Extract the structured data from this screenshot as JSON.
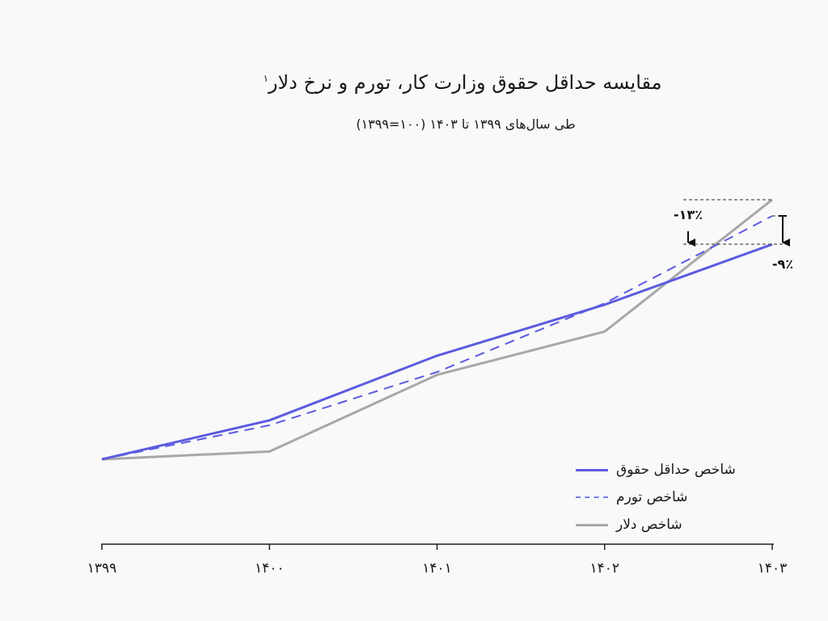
{
  "title": "مقایسه حداقل حقوق وزارت کار، تورم و نرخ دلار",
  "title_superscript": "۱",
  "subtitle": "طی سال‌های ۱۳۹۹ تا ۱۴۰۳ (۱۰۰=۱۳۹۹)",
  "legend": [
    {
      "label": "شاخص حداقل حقوق",
      "color": "#5b5be0",
      "style": "solid"
    },
    {
      "label": "شاخص تورم",
      "color": "#5b5be0",
      "style": "dashed"
    },
    {
      "label": "شاخص دلار",
      "color": "#a8a8a8",
      "style": "solid"
    }
  ],
  "x_ticks": [
    "۱۳۹۹",
    "۱۴۰۰",
    "۱۴۰۱",
    "۱۴۰۲",
    "۱۴۰۳"
  ],
  "annotations": {
    "vs_dollar": "-۱۳٪",
    "vs_inflation": "-۹٪"
  },
  "chart_data": {
    "type": "line",
    "title": "مقایسه حداقل حقوق وزارت کار، تورم و نرخ دلار",
    "subtitle": "طی سال‌های ۱۳۹۹ تا ۱۴۰۳ (۱۰۰=۱۳۹۹)",
    "xlabel": "",
    "ylabel": "",
    "categories": [
      "1399",
      "1400",
      "1401",
      "1402",
      "1403"
    ],
    "series": [
      {
        "name": "شاخص حداقل حقوق",
        "values": [
          100,
          155,
          246,
          318,
          403
        ],
        "color": "#5b5be0",
        "dash": "solid"
      },
      {
        "name": "شاخص تورم",
        "values": [
          100,
          148,
          223,
          320,
          443
        ],
        "color": "#5b5be0",
        "dash": "dashed"
      },
      {
        "name": "شاخص دلار",
        "values": [
          100,
          111,
          219,
          280,
          466
        ],
        "color": "#a8a8a8",
        "dash": "solid"
      }
    ],
    "annotations": [
      {
        "text": "-13%",
        "description": "minimum wage index vs dollar index in 1403"
      },
      {
        "text": "-9%",
        "description": "minimum wage index vs inflation index in 1403"
      }
    ],
    "ylim": [
      100,
      470
    ],
    "grid": false,
    "y_axis_visible": false,
    "legend_position": "lower right"
  }
}
